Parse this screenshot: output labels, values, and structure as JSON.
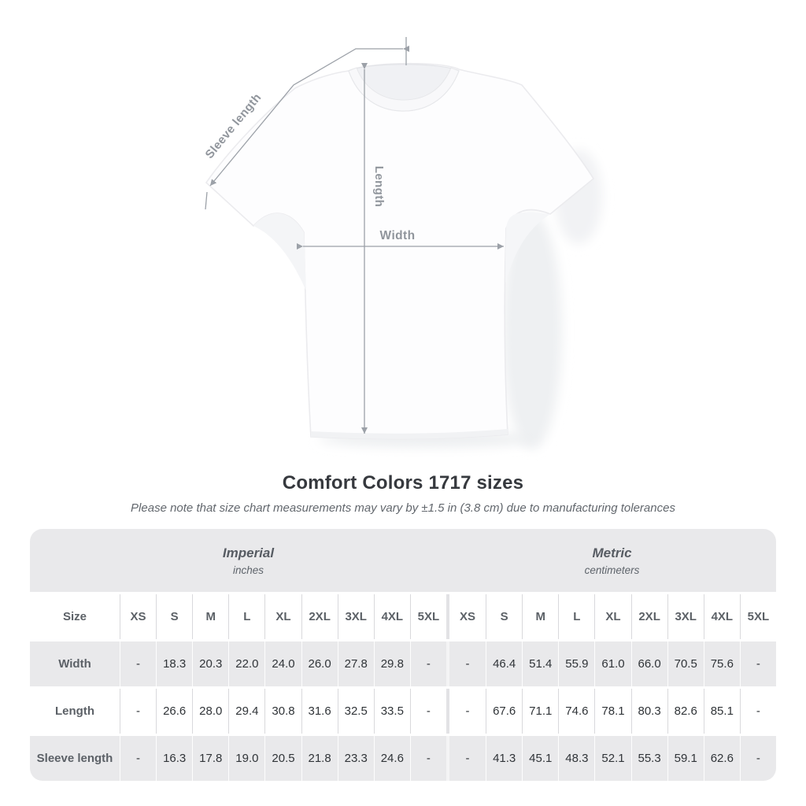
{
  "diagram": {
    "labels": {
      "sleeve_length": "Sleeve length",
      "length": "Length",
      "width": "Width"
    }
  },
  "title": "Comfort Colors 1717 sizes",
  "subtitle": "Please note that size chart measurements may vary by ±1.5 in (3.8 cm) due to manufacturing tolerances",
  "table": {
    "groups": [
      {
        "label": "Imperial",
        "sublabel": "inches"
      },
      {
        "label": "Metric",
        "sublabel": "centimeters"
      }
    ],
    "size_header": "Size",
    "sizes": [
      "XS",
      "S",
      "M",
      "L",
      "XL",
      "2XL",
      "3XL",
      "4XL",
      "5XL"
    ],
    "rows": [
      {
        "label": "Width",
        "imperial": [
          "-",
          "18.3",
          "20.3",
          "22.0",
          "24.0",
          "26.0",
          "27.8",
          "29.8",
          "-"
        ],
        "metric": [
          "-",
          "46.4",
          "51.4",
          "55.9",
          "61.0",
          "66.0",
          "70.5",
          "75.6",
          "-"
        ]
      },
      {
        "label": "Length",
        "imperial": [
          "-",
          "26.6",
          "28.0",
          "29.4",
          "30.8",
          "31.6",
          "32.5",
          "33.5",
          "-"
        ],
        "metric": [
          "-",
          "67.6",
          "71.1",
          "74.6",
          "78.1",
          "80.3",
          "82.6",
          "85.1",
          "-"
        ]
      },
      {
        "label": "Sleeve length",
        "imperial": [
          "-",
          "16.3",
          "17.8",
          "19.0",
          "20.5",
          "21.8",
          "23.3",
          "24.6",
          "-"
        ],
        "metric": [
          "-",
          "41.3",
          "45.1",
          "48.3",
          "52.1",
          "55.3",
          "59.1",
          "62.6",
          "-"
        ]
      }
    ]
  },
  "colors": {
    "band_gray": "#e9e9eb",
    "separator": "#d9d9dc",
    "value_text": "#303438",
    "muted_text": "#5c6167",
    "annotation_line": "#9ca1a8",
    "annotation_text": "#90959c"
  }
}
